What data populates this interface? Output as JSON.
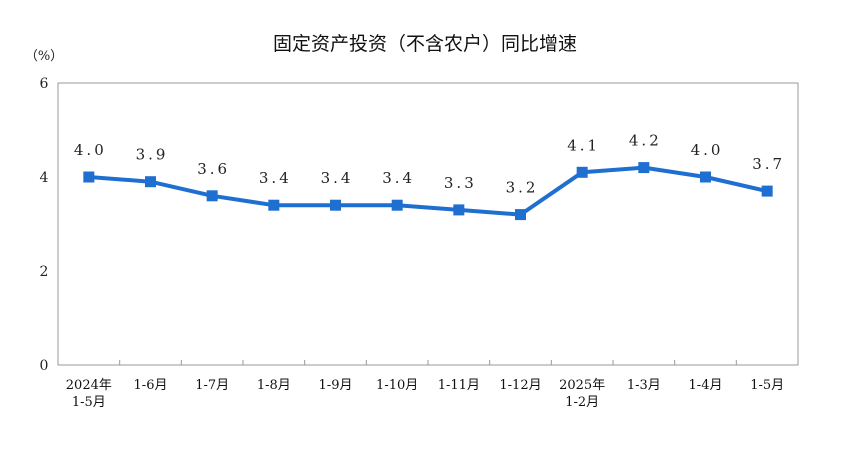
{
  "chart_data": {
    "type": "line",
    "title": "固定资产投资（不含农户）同比增速",
    "unit_label": "（%）",
    "categories": [
      [
        "2024年",
        "1-5月"
      ],
      [
        "1-6月"
      ],
      [
        "1-7月"
      ],
      [
        "1-8月"
      ],
      [
        "1-9月"
      ],
      [
        "1-10月"
      ],
      [
        "1-11月"
      ],
      [
        "1-12月"
      ],
      [
        "2025年",
        "1-2月"
      ],
      [
        "1-3月"
      ],
      [
        "1-4月"
      ],
      [
        "1-5月"
      ]
    ],
    "values": [
      4.0,
      3.9,
      3.6,
      3.4,
      3.4,
      3.4,
      3.3,
      3.2,
      4.1,
      4.2,
      4.0,
      3.7
    ],
    "data_labels": [
      "4.0",
      "3.9",
      "3.6",
      "3.4",
      "3.4",
      "3.4",
      "3.3",
      "3.2",
      "4.1",
      "4.2",
      "4.0",
      "3.7"
    ],
    "ylim": [
      0,
      6
    ],
    "yticks": [
      "0",
      "2",
      "4",
      "6"
    ],
    "grid": false,
    "legend": "none",
    "line_color": "#1f6fd1",
    "frame_color": "#9a9a9a"
  }
}
